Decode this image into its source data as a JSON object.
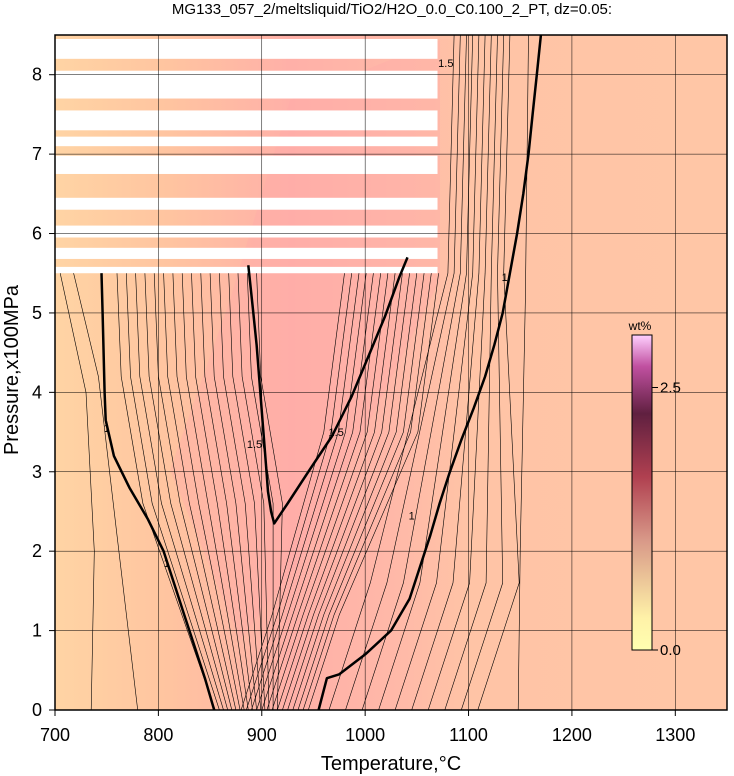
{
  "chart_data": {
    "type": "heatmap",
    "title": "MG133_057_2/meltsliquid/TiO2/H2O_0.0_C0.100_2_PT, dz=0.05:",
    "xlabel": "Temperature,°C",
    "ylabel": "Pressure,x100MPa",
    "xlim": [
      700,
      1350
    ],
    "ylim": [
      0,
      8.5
    ],
    "x_ticks": [
      700,
      800,
      900,
      1000,
      1100,
      1200,
      1300
    ],
    "y_ticks": [
      0,
      1,
      2,
      3,
      4,
      5,
      6,
      7,
      8
    ],
    "grid": true,
    "contour_interval": 0.05,
    "colorbar": {
      "label": "wt%",
      "range": [
        0.0,
        3.0
      ],
      "ticks": [
        {
          "value": 0.0,
          "label": "0.0"
        },
        {
          "value": 2.5,
          "label": "2.5"
        }
      ],
      "colors": [
        "#ffffb0",
        "#ffffb0",
        "#d89888",
        "#b04050",
        "#602040",
        "#c050a0",
        "#ffd0ff"
      ]
    },
    "contour_labels": [
      "1",
      "1",
      "1",
      "1.5",
      "1.5",
      "1",
      "1.5"
    ],
    "bold_contours": [
      {
        "value": 1.0,
        "points": [
          [
            745,
            5.5
          ],
          [
            746,
            5.0
          ],
          [
            747,
            4.5
          ],
          [
            748,
            4.0
          ],
          [
            749,
            3.65
          ],
          [
            757,
            3.2
          ],
          [
            772,
            2.8
          ],
          [
            790,
            2.4
          ],
          [
            805,
            2.0
          ],
          [
            815,
            1.6
          ],
          [
            825,
            1.2
          ],
          [
            835,
            0.8
          ],
          [
            845,
            0.4
          ],
          [
            854,
            0
          ]
        ]
      },
      {
        "value": 1.0,
        "points": [
          [
            955,
            0
          ],
          [
            963,
            0.4
          ],
          [
            975,
            0.45
          ],
          [
            1000,
            0.7
          ],
          [
            1025,
            1.0
          ],
          [
            1043,
            1.4
          ],
          [
            1053,
            1.8
          ],
          [
            1063,
            2.2
          ],
          [
            1072,
            2.6
          ],
          [
            1082,
            3.0
          ],
          [
            1093,
            3.4
          ],
          [
            1105,
            3.8
          ],
          [
            1116,
            4.2
          ],
          [
            1125,
            4.6
          ],
          [
            1133,
            5.0
          ],
          [
            1140,
            5.5
          ],
          [
            1147,
            6.0
          ],
          [
            1153,
            6.5
          ],
          [
            1158,
            7.0
          ],
          [
            1162,
            7.5
          ],
          [
            1166,
            8.0
          ],
          [
            1170,
            8.5
          ]
        ]
      },
      {
        "value": 1.5,
        "points": [
          [
            887,
            5.6
          ],
          [
            891,
            5.1
          ],
          [
            895,
            4.6
          ],
          [
            898,
            4.1
          ],
          [
            901,
            3.6
          ],
          [
            904,
            3.1
          ],
          [
            906,
            2.75
          ],
          [
            909,
            2.5
          ],
          [
            912,
            2.35
          ],
          [
            925,
            2.6
          ],
          [
            945,
            3.0
          ],
          [
            968,
            3.45
          ],
          [
            987,
            3.95
          ],
          [
            1003,
            4.45
          ],
          [
            1019,
            4.95
          ],
          [
            1033,
            5.45
          ],
          [
            1041,
            5.7
          ]
        ]
      }
    ],
    "white_bands": [
      [
        8.2,
        8.45
      ],
      [
        7.7,
        8.05
      ],
      [
        7.3,
        7.55
      ],
      [
        7.1,
        7.22
      ],
      [
        6.75,
        6.98
      ],
      [
        6.3,
        6.45
      ],
      [
        5.95,
        6.1
      ],
      [
        5.68,
        5.82
      ],
      [
        5.5,
        5.58
      ]
    ],
    "white_band_xmax": 1070
  }
}
